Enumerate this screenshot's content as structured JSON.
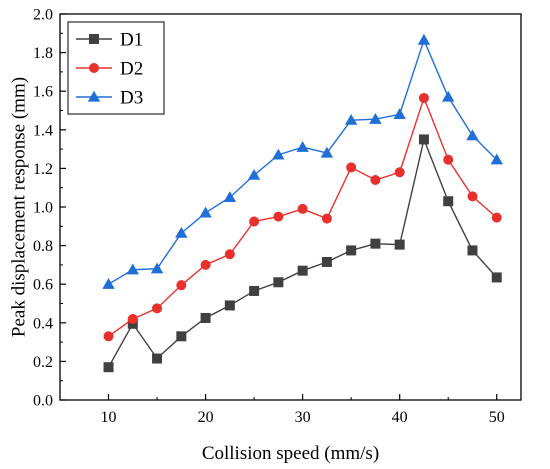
{
  "chart_data": {
    "type": "line",
    "title": "",
    "xlabel": "Collision speed (mm/s)",
    "ylabel": "Peak displacement response (mm)",
    "xlim": [
      5,
      52.5
    ],
    "ylim": [
      0,
      2.0
    ],
    "xticks": [
      10,
      20,
      30,
      40,
      50
    ],
    "yticks": [
      0.0,
      0.2,
      0.4,
      0.6,
      0.8,
      1.0,
      1.2,
      1.4,
      1.6,
      1.8,
      2.0
    ],
    "xtick_labels": [
      "10",
      "20",
      "30",
      "40",
      "50"
    ],
    "ytick_labels": [
      "0.0",
      "0.2",
      "0.4",
      "0.6",
      "0.8",
      "1.0",
      "1.2",
      "1.4",
      "1.6",
      "1.8",
      "2.0"
    ],
    "grid": false,
    "legend_position": "top-left",
    "x": [
      10,
      12.5,
      15,
      17.5,
      20,
      22.5,
      25,
      27.5,
      30,
      32.5,
      35,
      37.5,
      40,
      42.5,
      45,
      47.5,
      50
    ],
    "series": [
      {
        "name": "D1",
        "color": "#404040",
        "marker": "square",
        "values": [
          0.17,
          0.395,
          0.215,
          0.33,
          0.425,
          0.49,
          0.565,
          0.61,
          0.67,
          0.715,
          0.775,
          0.81,
          0.805,
          1.35,
          1.03,
          0.775,
          0.635
        ]
      },
      {
        "name": "D2",
        "color": "#e8312d",
        "marker": "circle",
        "values": [
          0.33,
          0.42,
          0.475,
          0.595,
          0.7,
          0.755,
          0.925,
          0.95,
          0.99,
          0.94,
          1.205,
          1.14,
          1.18,
          1.565,
          1.245,
          1.055,
          0.945
        ]
      },
      {
        "name": "D3",
        "color": "#1f6fd6",
        "marker": "triangle",
        "values": [
          0.6,
          0.675,
          0.68,
          0.865,
          0.97,
          1.05,
          1.165,
          1.27,
          1.31,
          1.28,
          1.45,
          1.455,
          1.48,
          1.865,
          1.57,
          1.37,
          1.245
        ]
      }
    ]
  }
}
